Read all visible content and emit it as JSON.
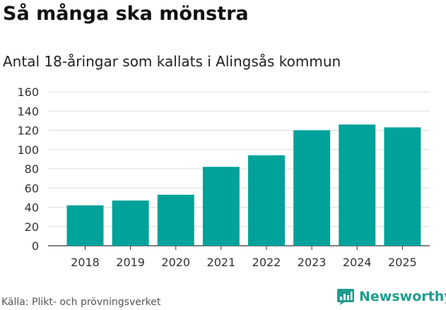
{
  "header": {
    "title": "Så många ska mönstra",
    "subtitle": "Antal 18-åringar som kallats i Alingsås kommun"
  },
  "footer": {
    "source": "Källa: Plikt- och prövningsverket",
    "brand": "Newsworthy",
    "brand_icon": "newsworthy-logo-icon"
  },
  "colors": {
    "bar": "#00a29a",
    "grid": "#dcdcdc",
    "brand": "#1f9d8f"
  },
  "chart_data": {
    "type": "bar",
    "title": "Så många ska mönstra",
    "subtitle": "Antal 18-åringar som kallats i Alingsås kommun",
    "xlabel": "",
    "ylabel": "",
    "categories": [
      "2018",
      "2019",
      "2020",
      "2021",
      "2022",
      "2023",
      "2024",
      "2025"
    ],
    "values": [
      42,
      47,
      53,
      82,
      94,
      120,
      126,
      123
    ],
    "ylim": [
      0,
      160
    ],
    "yticks": [
      0,
      20,
      40,
      60,
      80,
      100,
      120,
      140,
      160
    ],
    "grid": true,
    "legend": "none"
  }
}
